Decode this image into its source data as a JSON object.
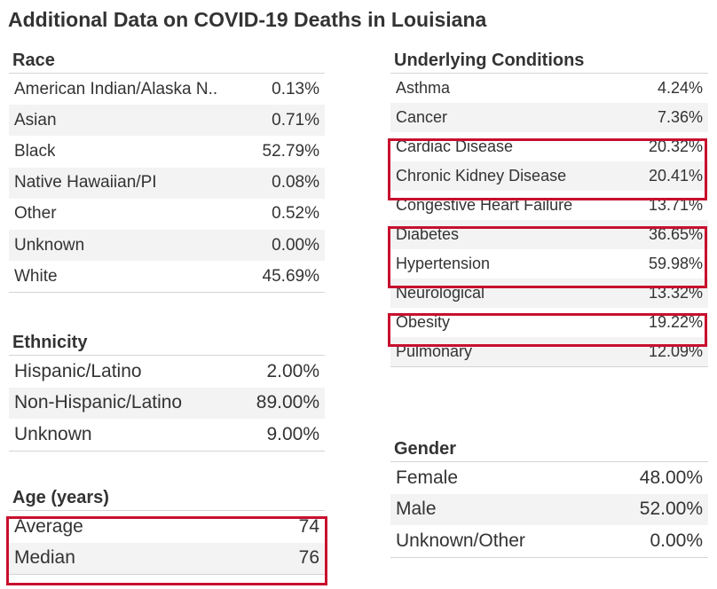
{
  "title": "Additional Data on COVID-19 Deaths in Louisiana",
  "colors": {
    "highlight": "#c8102e",
    "stripe": "#f3f3f3",
    "text": "#333333"
  },
  "chart_data": {
    "type": "table",
    "tables": {
      "race": {
        "title": "Race",
        "rows": [
          {
            "label": "American Indian/Alaska N..",
            "value": "0.13%"
          },
          {
            "label": "Asian",
            "value": "0.71%"
          },
          {
            "label": "Black",
            "value": "52.79%"
          },
          {
            "label": "Native Hawaiian/PI",
            "value": "0.08%"
          },
          {
            "label": "Other",
            "value": "0.52%"
          },
          {
            "label": "Unknown",
            "value": "0.00%"
          },
          {
            "label": "White",
            "value": "45.69%"
          }
        ]
      },
      "ethnicity": {
        "title": "Ethnicity",
        "rows": [
          {
            "label": "Hispanic/Latino",
            "value": "2.00%"
          },
          {
            "label": "Non-Hispanic/Latino",
            "value": "89.00%"
          },
          {
            "label": "Unknown",
            "value": "9.00%"
          }
        ]
      },
      "age": {
        "title": "Age (years)",
        "rows": [
          {
            "label": "Average",
            "value": "74"
          },
          {
            "label": "Median",
            "value": "76"
          }
        ]
      },
      "conditions": {
        "title": "Underlying Conditions",
        "rows": [
          {
            "label": "Asthma",
            "value": "4.24%"
          },
          {
            "label": "Cancer",
            "value": "7.36%"
          },
          {
            "label": "Cardiac Disease",
            "value": "20.32%"
          },
          {
            "label": "Chronic Kidney Disease",
            "value": "20.41%"
          },
          {
            "label": "Congestive Heart Failure",
            "value": "13.71%"
          },
          {
            "label": "Diabetes",
            "value": "36.65%"
          },
          {
            "label": "Hypertension",
            "value": "59.98%"
          },
          {
            "label": "Neurological",
            "value": "13.32%"
          },
          {
            "label": "Obesity",
            "value": "19.22%"
          },
          {
            "label": "Pulmonary",
            "value": "12.09%"
          }
        ]
      },
      "gender": {
        "title": "Gender",
        "rows": [
          {
            "label": "Female",
            "value": "48.00%"
          },
          {
            "label": "Male",
            "value": "52.00%"
          },
          {
            "label": "Unknown/Other",
            "value": "0.00%"
          }
        ]
      }
    }
  }
}
